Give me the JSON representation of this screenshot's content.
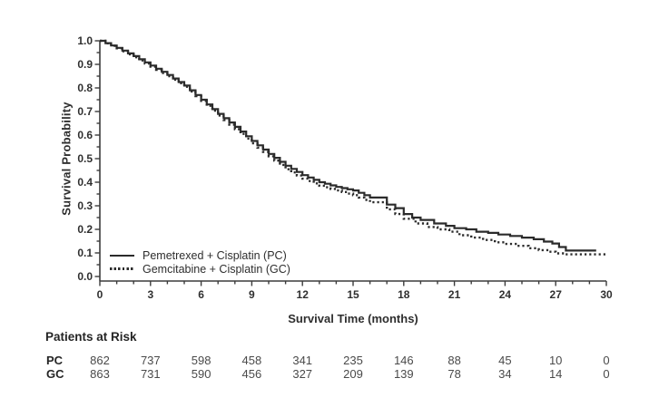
{
  "figure": {
    "type": "kaplan-meier-survival-figure",
    "background": "#ffffff"
  },
  "chart_data": {
    "type": "line",
    "subtype": "kaplan-meier-step",
    "title": "",
    "xlabel": "Survival Time (months)",
    "ylabel": "Survival Probability",
    "xlim": [
      0,
      30
    ],
    "ylim": [
      0.0,
      1.0
    ],
    "x_major_ticks": [
      0,
      3,
      6,
      9,
      12,
      15,
      18,
      21,
      24,
      27,
      30
    ],
    "x_minor_step": 1,
    "y_major_ticks": [
      0.0,
      0.1,
      0.2,
      0.3,
      0.4,
      0.5,
      0.6,
      0.7,
      0.8,
      0.9,
      1.0
    ],
    "y_minor_step": 0.05,
    "grid": false,
    "legend_position": "inside-lower-left",
    "axis_color": "#3c3c3c",
    "tick_label_color": "#2f2f2f",
    "series": [
      {
        "name": "Pemetrexed + Cisplatin (PC)",
        "abbr": "PC",
        "style": "solid",
        "color": "#2b2b2b",
        "points": [
          [
            0,
            1.0
          ],
          [
            1,
            0.97
          ],
          [
            2,
            0.935
          ],
          [
            3,
            0.895
          ],
          [
            4,
            0.855
          ],
          [
            5,
            0.81
          ],
          [
            6,
            0.75
          ],
          [
            7,
            0.69
          ],
          [
            8,
            0.635
          ],
          [
            9,
            0.575
          ],
          [
            10,
            0.52
          ],
          [
            11,
            0.47
          ],
          [
            12,
            0.43
          ],
          [
            13,
            0.4
          ],
          [
            14,
            0.38
          ],
          [
            15,
            0.365
          ],
          [
            16,
            0.335
          ],
          [
            17,
            0.305
          ],
          [
            17.5,
            0.29
          ],
          [
            18,
            0.265
          ],
          [
            18.5,
            0.25
          ],
          [
            19,
            0.24
          ],
          [
            19.8,
            0.225
          ],
          [
            20.5,
            0.215
          ],
          [
            21,
            0.205
          ],
          [
            21.7,
            0.2
          ],
          [
            22.3,
            0.19
          ],
          [
            23,
            0.185
          ],
          [
            23.6,
            0.178
          ],
          [
            24.3,
            0.172
          ],
          [
            25,
            0.165
          ],
          [
            25.7,
            0.158
          ],
          [
            26.3,
            0.148
          ],
          [
            26.8,
            0.14
          ],
          [
            27.2,
            0.125
          ],
          [
            27.6,
            0.11
          ],
          [
            29.4,
            0.11
          ]
        ]
      },
      {
        "name": "Gemcitabine + Cisplatin (GC)",
        "abbr": "GC",
        "style": "dotted",
        "color": "#2b2b2b",
        "points": [
          [
            0,
            1.0
          ],
          [
            1,
            0.968
          ],
          [
            2,
            0.93
          ],
          [
            3,
            0.89
          ],
          [
            4,
            0.85
          ],
          [
            5,
            0.805
          ],
          [
            6,
            0.745
          ],
          [
            7,
            0.683
          ],
          [
            8,
            0.625
          ],
          [
            9,
            0.565
          ],
          [
            10,
            0.51
          ],
          [
            11,
            0.455
          ],
          [
            12,
            0.415
          ],
          [
            13,
            0.385
          ],
          [
            14,
            0.365
          ],
          [
            15,
            0.345
          ],
          [
            16,
            0.315
          ],
          [
            17,
            0.285
          ],
          [
            17.5,
            0.265
          ],
          [
            18,
            0.245
          ],
          [
            18.7,
            0.225
          ],
          [
            19.4,
            0.21
          ],
          [
            20,
            0.2
          ],
          [
            20.7,
            0.19
          ],
          [
            21.3,
            0.175
          ],
          [
            22,
            0.165
          ],
          [
            22.7,
            0.155
          ],
          [
            23.4,
            0.145
          ],
          [
            24,
            0.138
          ],
          [
            24.7,
            0.13
          ],
          [
            25.4,
            0.12
          ],
          [
            26,
            0.112
          ],
          [
            26.6,
            0.105
          ],
          [
            27,
            0.098
          ],
          [
            27.5,
            0.094
          ],
          [
            30,
            0.094
          ]
        ]
      }
    ]
  },
  "patients_at_risk": {
    "title": "Patients at Risk",
    "times": [
      0,
      3,
      6,
      9,
      12,
      15,
      18,
      21,
      24,
      27,
      30
    ],
    "rows": [
      {
        "label": "PC",
        "counts": [
          862,
          737,
          598,
          458,
          341,
          235,
          146,
          88,
          45,
          10,
          0
        ]
      },
      {
        "label": "GC",
        "counts": [
          863,
          731,
          590,
          456,
          327,
          209,
          139,
          78,
          34,
          14,
          0
        ]
      }
    ]
  }
}
